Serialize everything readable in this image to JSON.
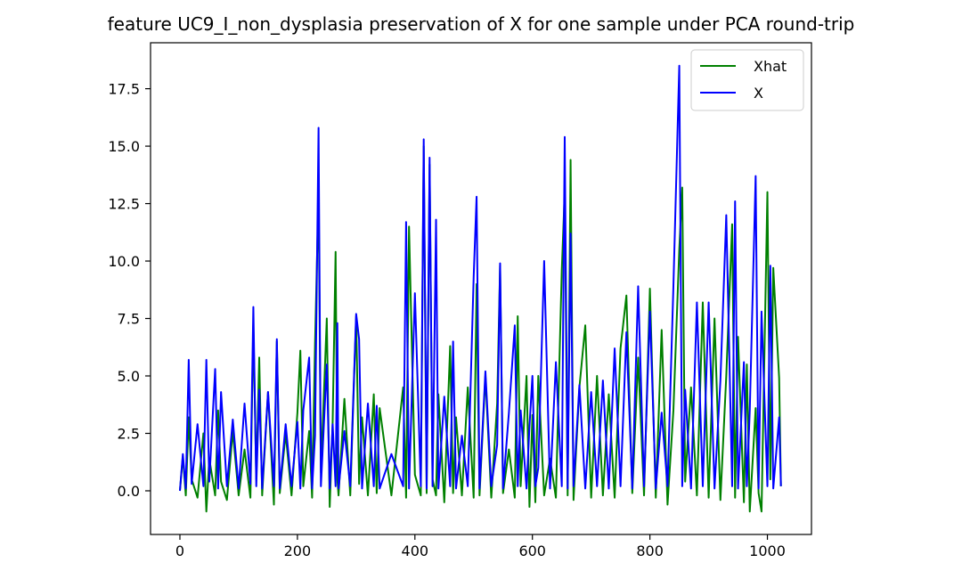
{
  "chart_data": {
    "type": "line",
    "title": "feature UC9_I_non_dysplasia preservation of X for one sample under PCA round-trip",
    "xlabel": "",
    "ylabel": "",
    "xlim": [
      -50,
      1075
    ],
    "ylim": [
      -1.9,
      19.5
    ],
    "x_ticks": [
      0,
      200,
      400,
      600,
      800,
      1000
    ],
    "x_tick_labels": [
      "0",
      "200",
      "400",
      "600",
      "800",
      "1000"
    ],
    "y_ticks": [
      0.0,
      2.5,
      5.0,
      7.5,
      10.0,
      12.5,
      15.0,
      17.5
    ],
    "y_tick_labels": [
      "0.0",
      "2.5",
      "5.0",
      "7.5",
      "10.0",
      "12.5",
      "15.0",
      "17.5"
    ],
    "grid": false,
    "legend": {
      "placement": "top-right",
      "entries": [
        "Xhat",
        "X"
      ]
    },
    "series": [
      {
        "name": "Xhat",
        "color": "#008000",
        "x": [
          0,
          5,
          10,
          15,
          20,
          30,
          40,
          45,
          50,
          60,
          65,
          70,
          80,
          90,
          100,
          110,
          120,
          125,
          130,
          135,
          140,
          150,
          160,
          165,
          170,
          180,
          190,
          200,
          205,
          210,
          220,
          225,
          230,
          236,
          240,
          250,
          255,
          260,
          265,
          268,
          270,
          280,
          290,
          300,
          305,
          310,
          320,
          330,
          335,
          340,
          360,
          380,
          385,
          390,
          400,
          410,
          415,
          420,
          425,
          430,
          436,
          440,
          450,
          460,
          465,
          470,
          480,
          490,
          500,
          505,
          510,
          520,
          530,
          540,
          545,
          550,
          560,
          570,
          575,
          580,
          590,
          595,
          600,
          605,
          610,
          620,
          630,
          640,
          650,
          655,
          660,
          665,
          670,
          680,
          690,
          700,
          710,
          720,
          730,
          740,
          750,
          760,
          770,
          780,
          790,
          800,
          810,
          820,
          830,
          840,
          850,
          855,
          860,
          870,
          880,
          890,
          900,
          910,
          920,
          930,
          940,
          945,
          950,
          960,
          965,
          970,
          980,
          985,
          990,
          1000,
          1005,
          1010,
          1020,
          1023
        ],
        "y": [
          0.0,
          1.5,
          -0.2,
          3.2,
          0.5,
          -0.3,
          2.5,
          -0.9,
          1.4,
          -0.2,
          3.5,
          0.4,
          -0.4,
          2.6,
          -0.2,
          1.8,
          -0.3,
          7.2,
          0.5,
          5.8,
          -0.2,
          4.3,
          -0.6,
          6.5,
          -0.1,
          2.5,
          -0.2,
          3.4,
          6.1,
          0.2,
          2.6,
          -0.3,
          6.4,
          13.0,
          0.8,
          7.5,
          -0.7,
          3.0,
          10.4,
          0.5,
          -0.2,
          4.0,
          -0.2,
          7.6,
          0.3,
          3.2,
          -0.2,
          4.2,
          -0.1,
          3.6,
          -0.2,
          4.5,
          -0.3,
          11.5,
          0.7,
          -0.2,
          15.0,
          -0.1,
          14.2,
          0.5,
          -0.2,
          4.2,
          -0.5,
          6.3,
          -0.1,
          3.2,
          -0.2,
          4.5,
          -0.3,
          9.0,
          -0.2,
          5.0,
          -0.3,
          3.8,
          9.8,
          -0.1,
          1.8,
          -0.3,
          7.6,
          0.2,
          5.0,
          -0.7,
          3.3,
          -0.5,
          5.0,
          -0.2,
          1.4,
          -0.3,
          9.6,
          13.0,
          -0.2,
          14.4,
          -0.4,
          4.5,
          7.2,
          -0.3,
          5.0,
          -0.2,
          4.2,
          -0.3,
          6.2,
          8.5,
          -0.1,
          5.8,
          -0.2,
          8.8,
          -0.3,
          7.0,
          -0.6,
          3.5,
          10.5,
          13.2,
          0.4,
          4.5,
          -0.2,
          8.2,
          -0.3,
          7.5,
          -0.4,
          5.0,
          11.6,
          -0.3,
          6.7,
          -0.5,
          5.5,
          -0.9,
          3.6,
          -0.1,
          -0.9,
          13.0,
          0.5,
          9.7,
          4.9,
          0.2
        ]
      },
      {
        "name": "X",
        "color": "#0000ff",
        "x": [
          0,
          5,
          10,
          15,
          20,
          30,
          40,
          45,
          50,
          60,
          65,
          70,
          80,
          90,
          100,
          110,
          120,
          125,
          130,
          135,
          140,
          150,
          160,
          165,
          170,
          180,
          190,
          200,
          205,
          210,
          220,
          225,
          230,
          236,
          240,
          250,
          255,
          260,
          265,
          268,
          270,
          280,
          290,
          300,
          305,
          310,
          320,
          330,
          335,
          340,
          360,
          380,
          385,
          390,
          400,
          410,
          415,
          420,
          425,
          430,
          436,
          440,
          450,
          460,
          465,
          470,
          480,
          490,
          500,
          505,
          510,
          520,
          530,
          540,
          545,
          550,
          560,
          570,
          575,
          580,
          590,
          595,
          600,
          605,
          610,
          620,
          630,
          640,
          650,
          655,
          660,
          665,
          670,
          680,
          690,
          700,
          710,
          720,
          730,
          740,
          750,
          760,
          770,
          780,
          790,
          800,
          810,
          820,
          830,
          840,
          850,
          855,
          860,
          870,
          880,
          890,
          900,
          910,
          920,
          930,
          940,
          945,
          950,
          960,
          965,
          970,
          980,
          985,
          990,
          1000,
          1005,
          1010,
          1020,
          1023
        ],
        "y": [
          0.0,
          1.6,
          0.1,
          5.7,
          0.3,
          2.9,
          0.2,
          5.7,
          0.4,
          5.3,
          0.1,
          4.3,
          0.2,
          3.1,
          0.1,
          3.8,
          0.3,
          8.0,
          0.2,
          4.4,
          0.1,
          4.3,
          0.2,
          6.6,
          0.1,
          2.9,
          0.2,
          3.0,
          0.1,
          3.5,
          5.8,
          0.1,
          2.4,
          15.8,
          0.2,
          5.5,
          0.1,
          2.9,
          0.2,
          7.3,
          0.1,
          2.6,
          0.2,
          7.7,
          6.6,
          0.1,
          3.8,
          0.2,
          3.7,
          0.1,
          1.6,
          0.2,
          11.7,
          0.1,
          8.6,
          0.2,
          15.3,
          0.1,
          14.5,
          0.2,
          11.8,
          0.1,
          4.1,
          0.2,
          6.5,
          0.1,
          2.4,
          0.2,
          9.3,
          12.8,
          0.1,
          5.2,
          0.2,
          2.0,
          9.9,
          0.1,
          3.4,
          7.2,
          0.2,
          3.5,
          0.1,
          2.8,
          5.0,
          0.2,
          1.0,
          10.0,
          0.1,
          5.6,
          0.2,
          15.4,
          0.1,
          11.2,
          0.2,
          4.6,
          0.1,
          4.3,
          0.2,
          4.8,
          0.1,
          6.2,
          0.2,
          6.9,
          0.1,
          8.9,
          0.2,
          7.8,
          0.1,
          3.4,
          0.2,
          8.9,
          18.5,
          0.2,
          4.4,
          0.1,
          8.2,
          0.2,
          8.2,
          0.1,
          4.8,
          12.0,
          0.2,
          12.6,
          0.1,
          5.6,
          0.2,
          3.5,
          13.7,
          0.1,
          7.8,
          0.2,
          9.8,
          0.1,
          3.2,
          0.2
        ]
      }
    ]
  }
}
